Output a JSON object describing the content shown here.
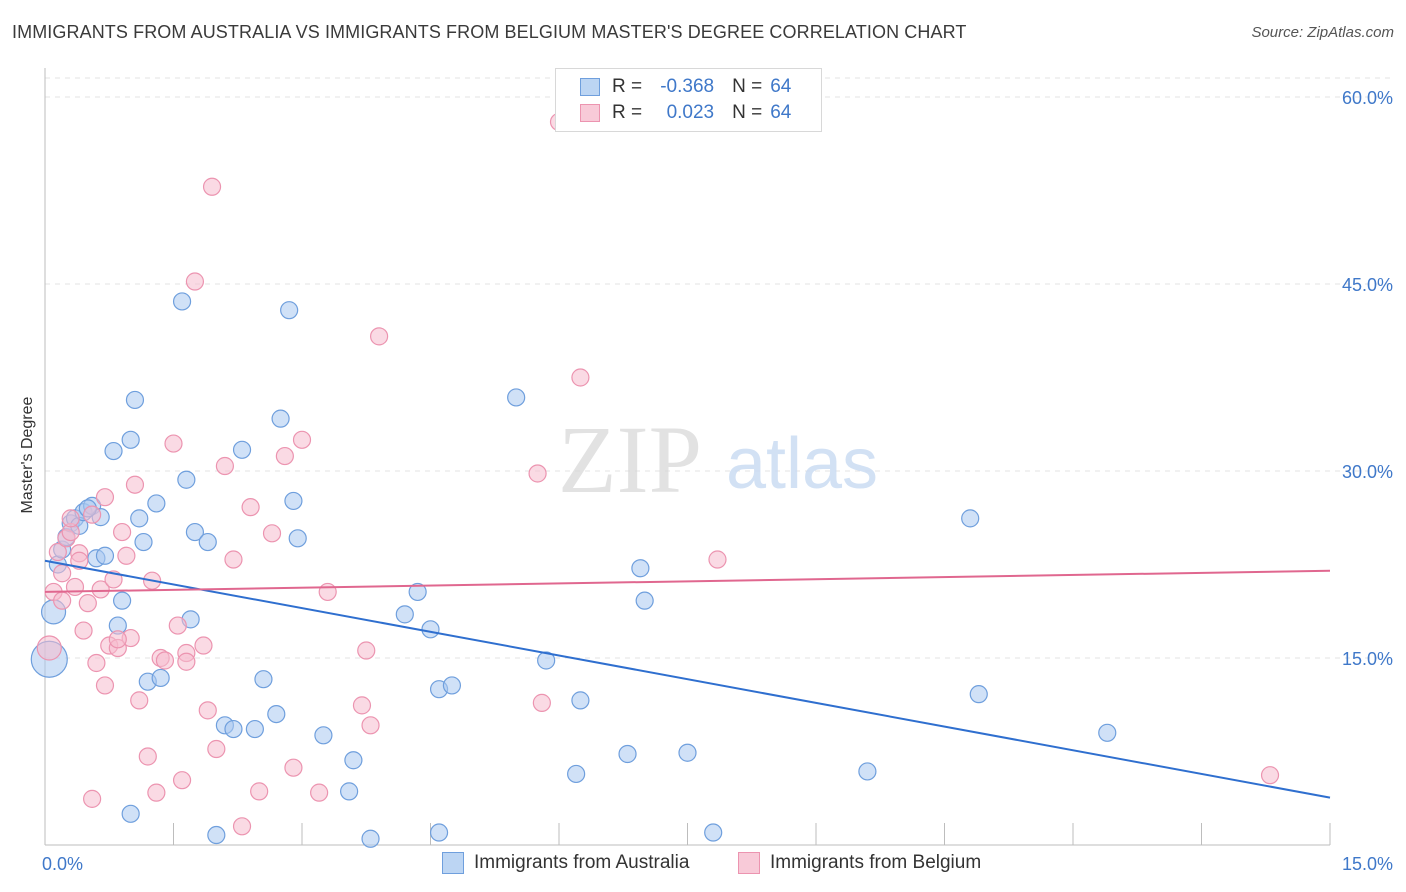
{
  "title": "IMMIGRANTS FROM AUSTRALIA VS IMMIGRANTS FROM BELGIUM MASTER'S DEGREE CORRELATION CHART",
  "source": "Source: ZipAtlas.com",
  "watermark": {
    "zip": "ZIP",
    "atlas": "atlas"
  },
  "legend": {
    "rows": [
      {
        "r_label": "R =",
        "r_value": "-0.368",
        "n_label": "N =",
        "n_value": "64"
      },
      {
        "r_label": "R =",
        "r_value": "0.023",
        "n_label": "N =",
        "n_value": "64"
      }
    ]
  },
  "colors": {
    "australia_fill": "#a9c8f0",
    "australia_stroke": "#6f9fdd",
    "australia_line": "#2f6fcf",
    "belgium_fill": "#f6bccd",
    "belgium_stroke": "#ec94b0",
    "belgium_line": "#e0678f",
    "tick_text": "#3f78c9"
  },
  "chart_data": {
    "type": "scatter",
    "title": "IMMIGRANTS FROM AUSTRALIA VS IMMIGRANTS FROM BELGIUM MASTER'S DEGREE CORRELATION CHART",
    "xlabel": "",
    "ylabel": "Master's Degree",
    "xlim": [
      0,
      15
    ],
    "ylim": [
      0,
      60
    ],
    "x_tick_labels": [
      "0.0%",
      "15.0%"
    ],
    "y_tick_labels": [
      "15.0%",
      "30.0%",
      "45.0%",
      "60.0%"
    ],
    "y_ticks": [
      15,
      30,
      45,
      60
    ],
    "grid": true,
    "legend_position": "bottom",
    "series": [
      {
        "name": "Immigrants from Australia",
        "r": -0.368,
        "n": 64,
        "trend": {
          "x": [
            0,
            15
          ],
          "y": [
            22.8,
            3.8
          ]
        },
        "points": [
          [
            0.1,
            18.7
          ],
          [
            0.15,
            22.5
          ],
          [
            0.2,
            23.7
          ],
          [
            0.25,
            24.7
          ],
          [
            0.3,
            25.8
          ],
          [
            0.35,
            26.2
          ],
          [
            0.4,
            25.6
          ],
          [
            0.45,
            26.7
          ],
          [
            0.55,
            27.2
          ],
          [
            0.6,
            23
          ],
          [
            0.65,
            26.3
          ],
          [
            0.7,
            23.2
          ],
          [
            0.8,
            31.6
          ],
          [
            0.85,
            17.6
          ],
          [
            0.9,
            19.6
          ],
          [
            1.0,
            32.5
          ],
          [
            1.05,
            35.7
          ],
          [
            1.1,
            26.2
          ],
          [
            1.15,
            24.3
          ],
          [
            1.2,
            13.1
          ],
          [
            1.3,
            27.4
          ],
          [
            1.35,
            13.4
          ],
          [
            1.6,
            43.6
          ],
          [
            1.65,
            29.3
          ],
          [
            1.7,
            18.1
          ],
          [
            1.75,
            25.1
          ],
          [
            1.9,
            24.3
          ],
          [
            2.1,
            9.6
          ],
          [
            2.2,
            9.3
          ],
          [
            2.3,
            31.7
          ],
          [
            2.45,
            9.3
          ],
          [
            2.55,
            13.3
          ],
          [
            2.7,
            10.5
          ],
          [
            2.75,
            34.2
          ],
          [
            2.85,
            42.9
          ],
          [
            2.9,
            27.6
          ],
          [
            2.95,
            24.6
          ],
          [
            3.25,
            8.8
          ],
          [
            3.55,
            4.3
          ],
          [
            3.6,
            6.8
          ],
          [
            3.8,
            0.5
          ],
          [
            4.2,
            18.5
          ],
          [
            4.35,
            20.3
          ],
          [
            4.5,
            17.3
          ],
          [
            4.6,
            1.0
          ],
          [
            4.6,
            12.5
          ],
          [
            4.75,
            12.8
          ],
          [
            5.5,
            35.9
          ],
          [
            5.85,
            14.8
          ],
          [
            6.2,
            5.7
          ],
          [
            6.25,
            11.6
          ],
          [
            6.8,
            7.3
          ],
          [
            6.95,
            22.2
          ],
          [
            7.0,
            19.6
          ],
          [
            7.5,
            7.4
          ],
          [
            7.8,
            1.0
          ],
          [
            9.6,
            5.9
          ],
          [
            10.8,
            26.2
          ],
          [
            10.9,
            12.1
          ],
          [
            12.4,
            9.0
          ],
          [
            2.0,
            0.8
          ],
          [
            1.0,
            2.5
          ],
          [
            0.05,
            14.9
          ],
          [
            0.5,
            27.0
          ]
        ]
      },
      {
        "name": "Immigrants from Belgium",
        "r": 0.023,
        "n": 64,
        "trend": {
          "x": [
            0,
            15
          ],
          "y": [
            20.3,
            22.0
          ]
        },
        "points": [
          [
            0.05,
            15.8
          ],
          [
            0.1,
            20.3
          ],
          [
            0.15,
            23.5
          ],
          [
            0.2,
            21.8
          ],
          [
            0.25,
            24.6
          ],
          [
            0.3,
            25.1
          ],
          [
            0.35,
            20.7
          ],
          [
            0.4,
            23.4
          ],
          [
            0.45,
            17.2
          ],
          [
            0.5,
            19.4
          ],
          [
            0.55,
            26.5
          ],
          [
            0.6,
            14.6
          ],
          [
            0.65,
            20.5
          ],
          [
            0.7,
            12.8
          ],
          [
            0.75,
            16.0
          ],
          [
            0.8,
            21.3
          ],
          [
            0.85,
            15.8
          ],
          [
            0.9,
            25.1
          ],
          [
            0.95,
            23.2
          ],
          [
            1.0,
            16.6
          ],
          [
            1.05,
            28.9
          ],
          [
            1.1,
            11.6
          ],
          [
            1.2,
            7.1
          ],
          [
            1.25,
            21.2
          ],
          [
            1.3,
            4.2
          ],
          [
            1.35,
            15.0
          ],
          [
            1.4,
            14.8
          ],
          [
            1.5,
            32.2
          ],
          [
            1.55,
            17.6
          ],
          [
            1.6,
            5.2
          ],
          [
            1.65,
            15.4
          ],
          [
            1.75,
            45.2
          ],
          [
            1.85,
            16.0
          ],
          [
            1.9,
            10.8
          ],
          [
            1.95,
            52.8
          ],
          [
            2.0,
            7.7
          ],
          [
            2.1,
            30.4
          ],
          [
            2.2,
            22.9
          ],
          [
            2.3,
            1.5
          ],
          [
            2.4,
            27.1
          ],
          [
            2.5,
            4.3
          ],
          [
            2.65,
            25.0
          ],
          [
            2.8,
            31.2
          ],
          [
            2.9,
            6.2
          ],
          [
            3.0,
            32.5
          ],
          [
            3.2,
            4.2
          ],
          [
            3.3,
            20.3
          ],
          [
            3.7,
            11.2
          ],
          [
            3.75,
            15.6
          ],
          [
            3.8,
            9.6
          ],
          [
            3.9,
            40.8
          ],
          [
            5.75,
            29.8
          ],
          [
            5.8,
            11.4
          ],
          [
            6.0,
            58.0
          ],
          [
            6.25,
            37.5
          ],
          [
            7.85,
            22.9
          ],
          [
            14.3,
            5.6
          ],
          [
            0.55,
            3.7
          ],
          [
            0.4,
            22.8
          ],
          [
            0.3,
            26.2
          ],
          [
            0.7,
            27.9
          ],
          [
            0.2,
            19.6
          ],
          [
            1.65,
            14.7
          ],
          [
            0.85,
            16.5
          ]
        ]
      }
    ]
  },
  "bottom_legend": [
    {
      "label": "Immigrants from Australia"
    },
    {
      "label": "Immigrants from Belgium"
    }
  ]
}
